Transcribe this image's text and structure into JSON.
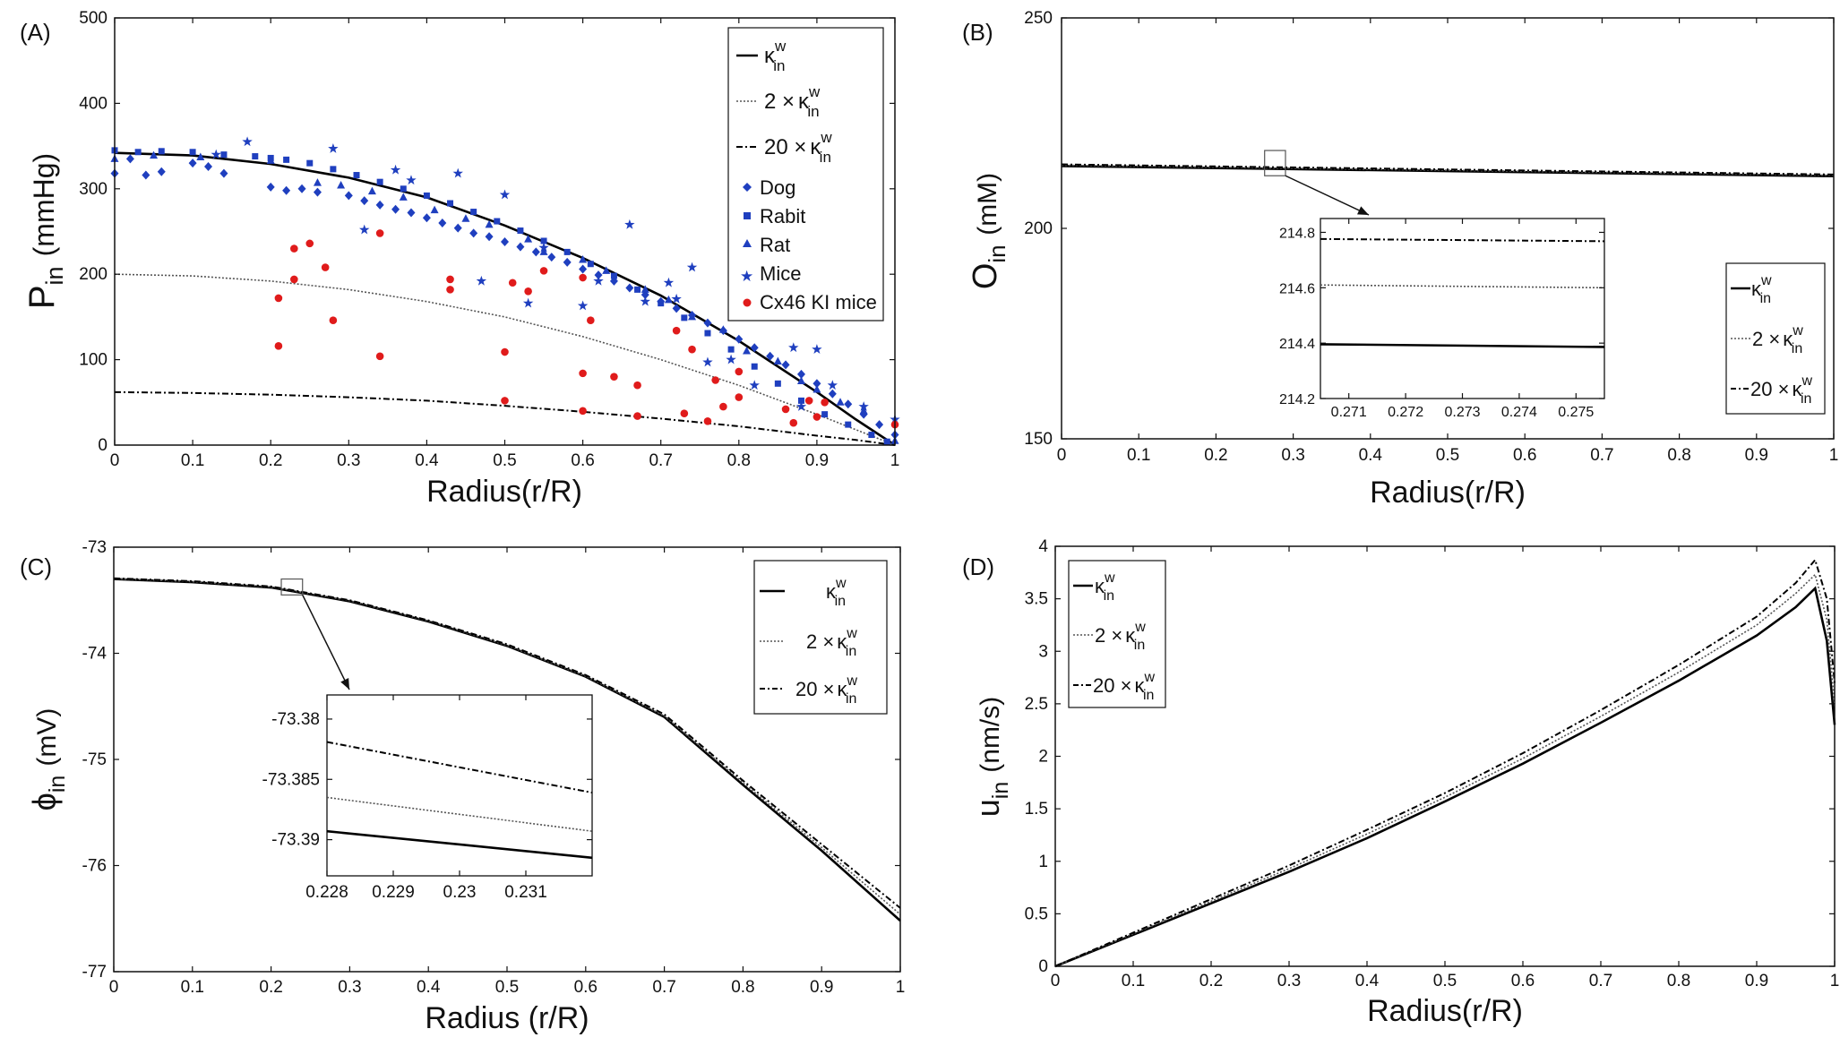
{
  "figure": {
    "panels": [
      "(A)",
      "(B)",
      "(C)",
      "(D)"
    ]
  },
  "legend_symbols": {
    "kappa": "κ",
    "sup": "w",
    "sub": "in",
    "two_times": "2 ×",
    "twenty_times": "20 ×"
  },
  "chart_data": [
    {
      "panel": "(A)",
      "type": "scatter",
      "xlabel": "Radius(r/R)",
      "ylabel_main": "P",
      "ylabel_sub": "in",
      "ylabel_unit": "(mmHg)",
      "xlim": [
        0,
        1
      ],
      "ylim": [
        0,
        500
      ],
      "xticks": [
        0,
        0.1,
        0.2,
        0.3,
        0.4,
        0.5,
        0.6,
        0.7,
        0.8,
        0.9,
        1
      ],
      "yticks": [
        0,
        100,
        200,
        300,
        400,
        500
      ],
      "xtick_labels": [
        "0",
        "0.1",
        "0.2",
        "0.3",
        "0.4",
        "0.5",
        "0.6",
        "0.7",
        "0.8",
        "0.9",
        "1"
      ],
      "ytick_labels": [
        "0",
        "100",
        "200",
        "300",
        "400",
        "500"
      ],
      "legend_position": "top-right",
      "series": [
        {
          "name": "κ_in^w",
          "style": "solid",
          "kind": "line",
          "x": [
            0,
            0.1,
            0.2,
            0.3,
            0.4,
            0.5,
            0.6,
            0.7,
            0.8,
            0.9,
            0.95,
            1
          ],
          "y": [
            342,
            339,
            329,
            313,
            290,
            257,
            219,
            175,
            122,
            62,
            30,
            0
          ]
        },
        {
          "name": "2 × κ_in^w",
          "style": "dotted",
          "kind": "line",
          "x": [
            0,
            0.1,
            0.2,
            0.3,
            0.4,
            0.5,
            0.6,
            0.7,
            0.8,
            0.9,
            0.95,
            1
          ],
          "y": [
            200,
            198,
            192,
            182,
            168,
            150,
            127,
            100,
            70,
            36,
            18,
            0
          ]
        },
        {
          "name": "20 × κ_in^w",
          "style": "dashdot",
          "kind": "line",
          "x": [
            0,
            0.1,
            0.2,
            0.3,
            0.4,
            0.5,
            0.6,
            0.7,
            0.8,
            0.9,
            0.95,
            1
          ],
          "y": [
            62,
            61,
            59,
            56,
            52,
            46,
            39,
            31,
            22,
            11,
            6,
            0
          ]
        },
        {
          "name": "Dog",
          "kind": "marker",
          "marker": "diamond",
          "color": "#1f3fbf",
          "x": [
            0,
            0.02,
            0.04,
            0.06,
            0.1,
            0.12,
            0.14,
            0.2,
            0.22,
            0.24,
            0.26,
            0.3,
            0.32,
            0.34,
            0.36,
            0.38,
            0.4,
            0.42,
            0.44,
            0.46,
            0.48,
            0.5,
            0.52,
            0.54,
            0.56,
            0.58,
            0.6,
            0.62,
            0.64,
            0.66,
            0.68,
            0.7,
            0.72,
            0.74,
            0.76,
            0.78,
            0.8,
            0.82,
            0.84,
            0.86,
            0.88,
            0.9,
            0.92,
            0.94,
            0.96,
            0.98,
            1
          ],
          "y": [
            318,
            335,
            316,
            320,
            330,
            326,
            318,
            302,
            298,
            300,
            296,
            292,
            286,
            281,
            276,
            272,
            266,
            260,
            254,
            248,
            244,
            238,
            232,
            226,
            220,
            214,
            206,
            199,
            192,
            184,
            176,
            168,
            160,
            152,
            143,
            134,
            124,
            114,
            104,
            94,
            83,
            72,
            60,
            48,
            36,
            24,
            12
          ]
        },
        {
          "name": "Rabit",
          "kind": "marker",
          "marker": "square",
          "color": "#1f3fbf",
          "x": [
            0,
            0.03,
            0.06,
            0.1,
            0.14,
            0.18,
            0.2,
            0.22,
            0.25,
            0.28,
            0.31,
            0.34,
            0.37,
            0.4,
            0.43,
            0.46,
            0.49,
            0.52,
            0.55,
            0.58,
            0.61,
            0.64,
            0.67,
            0.7,
            0.73,
            0.76,
            0.79,
            0.82,
            0.85,
            0.88,
            0.91,
            0.94,
            0.97,
            0.99
          ],
          "y": [
            345,
            343,
            344,
            343,
            340,
            338,
            336,
            334,
            330,
            323,
            316,
            308,
            300,
            292,
            283,
            273,
            262,
            251,
            239,
            226,
            212,
            198,
            182,
            166,
            149,
            131,
            112,
            92,
            72,
            52,
            36,
            24,
            12,
            4
          ]
        },
        {
          "name": "Rat",
          "kind": "marker",
          "marker": "triangle",
          "color": "#1f3fbf",
          "x": [
            0,
            0.05,
            0.11,
            0.2,
            0.26,
            0.29,
            0.33,
            0.37,
            0.41,
            0.45,
            0.48,
            0.53,
            0.55,
            0.6,
            0.63,
            0.68,
            0.71,
            0.74,
            0.78,
            0.81,
            0.85,
            0.88,
            0.9,
            0.93,
            0.96,
            1
          ],
          "y": [
            335,
            339,
            337,
            333,
            307,
            304,
            297,
            290,
            275,
            265,
            258,
            241,
            226,
            217,
            204,
            182,
            170,
            150,
            135,
            110,
            98,
            75,
            65,
            50,
            40,
            5
          ]
        },
        {
          "name": "Mice",
          "kind": "marker",
          "marker": "star",
          "color": "#1f3fbf",
          "x": [
            0.13,
            0.17,
            0.28,
            0.32,
            0.36,
            0.38,
            0.44,
            0.47,
            0.5,
            0.53,
            0.55,
            0.6,
            0.62,
            0.66,
            0.68,
            0.71,
            0.72,
            0.74,
            0.76,
            0.79,
            0.82,
            0.87,
            0.88,
            0.9,
            0.92,
            0.96,
            1
          ],
          "y": [
            340,
            355,
            347,
            252,
            322,
            310,
            318,
            192,
            293,
            166,
            231,
            163,
            192,
            258,
            168,
            190,
            171,
            208,
            97,
            100,
            70,
            114,
            45,
            112,
            70,
            45,
            30
          ]
        },
        {
          "name": "Cx46 KI mice",
          "kind": "marker",
          "marker": "circle",
          "color": "#e01b1b",
          "x": [
            0.21,
            0.21,
            0.23,
            0.23,
            0.25,
            0.27,
            0.28,
            0.34,
            0.34,
            0.43,
            0.43,
            0.5,
            0.5,
            0.51,
            0.53,
            0.55,
            0.6,
            0.6,
            0.6,
            0.61,
            0.64,
            0.67,
            0.67,
            0.72,
            0.73,
            0.74,
            0.76,
            0.77,
            0.78,
            0.8,
            0.8,
            0.86,
            0.87,
            0.89,
            0.9,
            0.91,
            1
          ],
          "y": [
            172,
            116,
            230,
            194,
            236,
            208,
            146,
            104,
            248,
            194,
            182,
            109,
            52,
            190,
            180,
            204,
            196,
            84,
            40,
            146,
            80,
            70,
            34,
            134,
            37,
            112,
            28,
            76,
            45,
            56,
            86,
            42,
            26,
            52,
            33,
            50,
            24
          ]
        }
      ]
    },
    {
      "panel": "(B)",
      "type": "line",
      "xlabel": "Radius(r/R)",
      "ylabel_main": "O",
      "ylabel_sub": "in",
      "ylabel_unit": "(mM)",
      "xlim": [
        0,
        1
      ],
      "ylim": [
        150,
        250
      ],
      "xticks": [
        0,
        0.1,
        0.2,
        0.3,
        0.4,
        0.5,
        0.6,
        0.7,
        0.8,
        0.9,
        1
      ],
      "yticks": [
        150,
        200,
        250
      ],
      "xtick_labels": [
        "0",
        "0.1",
        "0.2",
        "0.3",
        "0.4",
        "0.5",
        "0.6",
        "0.7",
        "0.8",
        "0.9",
        "1"
      ],
      "ytick_labels": [
        "150",
        "200",
        "250"
      ],
      "legend_position": "bottom-right",
      "series": [
        {
          "name": "κ_in^w",
          "style": "solid",
          "x": [
            0,
            1
          ],
          "y": [
            214.8,
            212.4
          ]
        },
        {
          "name": "2 × κ_in^w",
          "style": "dotted",
          "x": [
            0,
            1
          ],
          "y": [
            215.0,
            212.6
          ]
        },
        {
          "name": "20 × κ_in^w",
          "style": "dashdot",
          "x": [
            0,
            1
          ],
          "y": [
            215.2,
            212.8
          ]
        }
      ],
      "zoom_box": {
        "x": [
          0.263,
          0.29
        ],
        "y": [
          212.5,
          218.5
        ]
      },
      "inset": {
        "xlim": [
          0.2705,
          0.2755
        ],
        "ylim": [
          214.2,
          214.85
        ],
        "xticks": [
          0.271,
          0.272,
          0.273,
          0.274,
          0.275
        ],
        "yticks": [
          214.2,
          214.4,
          214.6,
          214.8
        ],
        "xtick_labels": [
          "0.271",
          "0.272",
          "0.273",
          "0.274",
          "0.275"
        ],
        "ytick_labels": [
          "214.2",
          "214.4",
          "214.6",
          "214.8"
        ],
        "series": [
          {
            "style": "solid",
            "x": [
              0.2705,
              0.2755
            ],
            "y": [
              214.396,
              214.386
            ]
          },
          {
            "style": "dotted",
            "x": [
              0.2705,
              0.2755
            ],
            "y": [
              214.61,
              214.6
            ]
          },
          {
            "style": "dashdot",
            "x": [
              0.2705,
              0.2755
            ],
            "y": [
              214.776,
              214.768
            ]
          }
        ]
      }
    },
    {
      "panel": "(C)",
      "type": "line",
      "xlabel": "Radius (r/R)",
      "ylabel_main": "ϕ",
      "ylabel_sub": "in",
      "ylabel_unit": "(mV)",
      "xlim": [
        0,
        1
      ],
      "ylim": [
        -77,
        -73
      ],
      "xticks": [
        0,
        0.1,
        0.2,
        0.3,
        0.4,
        0.5,
        0.6,
        0.7,
        0.8,
        0.9,
        1
      ],
      "yticks": [
        -77,
        -76,
        -75,
        -74,
        -73
      ],
      "xtick_labels": [
        "0",
        "0.1",
        "0.2",
        "0.3",
        "0.4",
        "0.5",
        "0.6",
        "0.7",
        "0.8",
        "0.9",
        "1"
      ],
      "ytick_labels": [
        "-77",
        "-76",
        "-75",
        "-74",
        "-73"
      ],
      "legend_position": "top-right",
      "series": [
        {
          "name": "κ_in^w",
          "style": "solid",
          "x": [
            0,
            0.1,
            0.2,
            0.3,
            0.4,
            0.5,
            0.6,
            0.7,
            0.8,
            0.9,
            1
          ],
          "y": [
            -73.3,
            -73.33,
            -73.38,
            -73.51,
            -73.7,
            -73.93,
            -74.22,
            -74.6,
            -75.24,
            -75.86,
            -76.52
          ]
        },
        {
          "name": "2 × κ_in^w",
          "style": "dotted",
          "x": [
            0,
            0.1,
            0.2,
            0.3,
            0.4,
            0.5,
            0.6,
            0.7,
            0.8,
            0.9,
            1
          ],
          "y": [
            -73.297,
            -73.325,
            -73.375,
            -73.505,
            -73.695,
            -73.925,
            -74.215,
            -74.59,
            -75.22,
            -75.83,
            -76.46
          ]
        },
        {
          "name": "20 × κ_in^w",
          "style": "dashdot",
          "x": [
            0,
            0.1,
            0.2,
            0.3,
            0.4,
            0.5,
            0.6,
            0.7,
            0.8,
            0.9,
            1
          ],
          "y": [
            -73.293,
            -73.32,
            -73.37,
            -73.5,
            -73.69,
            -73.915,
            -74.205,
            -74.575,
            -75.2,
            -75.8,
            -76.4
          ]
        }
      ],
      "zoom_box": {
        "x": [
          0.213,
          0.24
        ],
        "y": [
          -73.45,
          -73.3
        ]
      },
      "inset": {
        "xlim": [
          0.228,
          0.232
        ],
        "ylim": [
          -73.393,
          -73.378
        ],
        "xticks": [
          0.228,
          0.229,
          0.23,
          0.231
        ],
        "yticks": [
          -73.38,
          -73.385,
          -73.39
        ],
        "xtick_labels": [
          "0.228",
          "0.229",
          "0.23",
          "0.231"
        ],
        "ytick_labels": [
          "-73.38",
          "-73.385",
          "-73.39"
        ],
        "series": [
          {
            "style": "solid",
            "x": [
              0.228,
              0.232
            ],
            "y": [
              -73.3893,
              -73.3915
            ]
          },
          {
            "style": "dotted",
            "x": [
              0.228,
              0.232
            ],
            "y": [
              -73.3865,
              -73.3893
            ]
          },
          {
            "style": "dashdot",
            "x": [
              0.228,
              0.232
            ],
            "y": [
              -73.3819,
              -73.3861
            ]
          }
        ]
      }
    },
    {
      "panel": "(D)",
      "type": "line",
      "xlabel": "Radius(r/R)",
      "ylabel_main": "u",
      "ylabel_sub": "in",
      "ylabel_unit": "(nm/s)",
      "xlim": [
        0,
        1
      ],
      "ylim": [
        0,
        4
      ],
      "xticks": [
        0,
        0.1,
        0.2,
        0.3,
        0.4,
        0.5,
        0.6,
        0.7,
        0.8,
        0.9,
        1
      ],
      "yticks": [
        0,
        0.5,
        1,
        1.5,
        2,
        2.5,
        3,
        3.5,
        4
      ],
      "xtick_labels": [
        "0",
        "0.1",
        "0.2",
        "0.3",
        "0.4",
        "0.5",
        "0.6",
        "0.7",
        "0.8",
        "0.9",
        "1"
      ],
      "ytick_labels": [
        "0",
        "0.5",
        "1",
        "1.5",
        "2",
        "2.5",
        "3",
        "3.5",
        "4"
      ],
      "legend_position": "top-left",
      "series": [
        {
          "name": "κ_in^w",
          "style": "solid",
          "x": [
            0,
            0.1,
            0.2,
            0.3,
            0.4,
            0.5,
            0.6,
            0.7,
            0.8,
            0.9,
            0.95,
            0.975,
            0.99,
            1
          ],
          "y": [
            0,
            0.3,
            0.6,
            0.9,
            1.22,
            1.57,
            1.93,
            2.32,
            2.72,
            3.15,
            3.42,
            3.6,
            3.1,
            2.3
          ]
        },
        {
          "name": "2 × κ_in^w",
          "style": "dotted",
          "x": [
            0,
            0.1,
            0.2,
            0.3,
            0.4,
            0.5,
            0.6,
            0.7,
            0.8,
            0.9,
            0.95,
            0.975,
            0.99,
            1
          ],
          "y": [
            0,
            0.31,
            0.62,
            0.93,
            1.26,
            1.61,
            1.98,
            2.38,
            2.8,
            3.25,
            3.55,
            3.73,
            3.3,
            2.5
          ]
        },
        {
          "name": "20 × κ_in^w",
          "style": "dashdot",
          "x": [
            0,
            0.1,
            0.2,
            0.3,
            0.4,
            0.5,
            0.6,
            0.7,
            0.8,
            0.9,
            0.95,
            0.975,
            0.99,
            1
          ],
          "y": [
            0,
            0.32,
            0.64,
            0.96,
            1.3,
            1.65,
            2.03,
            2.44,
            2.87,
            3.33,
            3.65,
            3.87,
            3.5,
            2.7
          ]
        }
      ]
    }
  ]
}
